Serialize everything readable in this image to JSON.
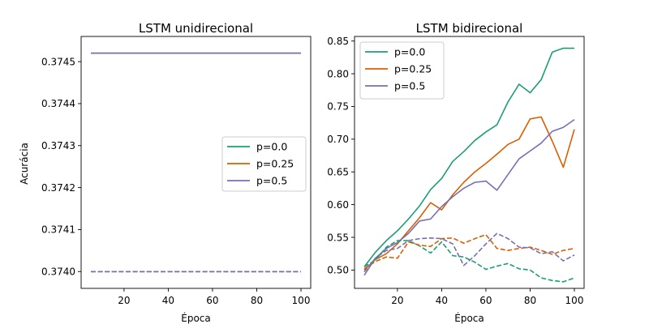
{
  "colors": {
    "p00": "#1b9e77",
    "p025": "#d95f02",
    "p05": "#7570b3"
  },
  "chart_data": [
    {
      "type": "line",
      "title": "LSTM unidirecional",
      "xlabel": "Época",
      "ylabel": "Acurácia",
      "xlim": [
        0.6,
        104.4
      ],
      "ylim": [
        0.37396,
        0.37456
      ],
      "xticks": [
        20,
        40,
        60,
        80,
        100
      ],
      "yticks": [
        0.374,
        0.3741,
        0.3742,
        0.3743,
        0.3744,
        0.3745
      ],
      "ytick_labels": [
        "0.3740",
        "0.3741",
        "0.3742",
        "0.3743",
        "0.3744",
        "0.3745"
      ],
      "legend": {
        "location": "center-right",
        "entries": [
          "p=0.0",
          "p=0.25",
          "p=0.5"
        ]
      },
      "series": [
        {
          "name": "p=0.0",
          "color": "#1b9e77",
          "style": "solid",
          "x": [
            5,
            100
          ],
          "y": [
            0.37452,
            0.37452
          ]
        },
        {
          "name": "p=0.25",
          "color": "#d95f02",
          "style": "solid",
          "x": [
            5,
            100
          ],
          "y": [
            0.37452,
            0.37452
          ]
        },
        {
          "name": "p=0.5",
          "color": "#7570b3",
          "style": "solid",
          "x": [
            5,
            100
          ],
          "y": [
            0.37452,
            0.37452
          ]
        },
        {
          "name": "p=0.0",
          "color": "#1b9e77",
          "style": "dashed",
          "x": [
            5,
            100
          ],
          "y": [
            0.374,
            0.374
          ]
        },
        {
          "name": "p=0.25",
          "color": "#d95f02",
          "style": "dashed",
          "x": [
            5,
            100
          ],
          "y": [
            0.374,
            0.374
          ]
        },
        {
          "name": "p=0.5",
          "color": "#7570b3",
          "style": "dashed",
          "x": [
            5,
            100
          ],
          "y": [
            0.374,
            0.374
          ]
        }
      ]
    },
    {
      "type": "line",
      "title": "LSTM bidirecional",
      "xlabel": "Época",
      "ylabel": "",
      "xlim": [
        0.6,
        104.4
      ],
      "ylim": [
        0.472,
        0.857
      ],
      "xticks": [
        20,
        40,
        60,
        80,
        100
      ],
      "yticks": [
        0.5,
        0.55,
        0.6,
        0.65,
        0.7,
        0.75,
        0.8,
        0.85
      ],
      "ytick_labels": [
        "0.50",
        "0.55",
        "0.60",
        "0.65",
        "0.70",
        "0.75",
        "0.80",
        "0.85"
      ],
      "legend": {
        "location": "top-left",
        "entries": [
          "p=0.0",
          "p=0.25",
          "p=0.5"
        ]
      },
      "series": [
        {
          "name": "p=0.0",
          "color": "#1b9e77",
          "style": "solid",
          "x": [
            5,
            10,
            15,
            20,
            25,
            30,
            35,
            40,
            45,
            50,
            55,
            60,
            65,
            70,
            75,
            80,
            85,
            90,
            95,
            100
          ],
          "y": [
            0.505,
            0.527,
            0.545,
            0.56,
            0.578,
            0.598,
            0.623,
            0.64,
            0.666,
            0.681,
            0.698,
            0.711,
            0.722,
            0.757,
            0.784,
            0.771,
            0.791,
            0.833,
            0.839,
            0.839
          ]
        },
        {
          "name": "p=0.25",
          "color": "#d95f02",
          "style": "solid",
          "x": [
            5,
            10,
            15,
            20,
            25,
            30,
            35,
            40,
            45,
            50,
            55,
            60,
            65,
            70,
            75,
            80,
            85,
            90,
            95,
            100
          ],
          "y": [
            0.5,
            0.516,
            0.525,
            0.54,
            0.56,
            0.58,
            0.603,
            0.592,
            0.615,
            0.634,
            0.65,
            0.663,
            0.677,
            0.692,
            0.7,
            0.731,
            0.734,
            0.697,
            0.657,
            0.715
          ]
        },
        {
          "name": "p=0.5",
          "color": "#7570b3",
          "style": "solid",
          "x": [
            5,
            10,
            15,
            20,
            25,
            30,
            35,
            40,
            45,
            50,
            55,
            60,
            65,
            70,
            75,
            80,
            85,
            90,
            95,
            100
          ],
          "y": [
            0.492,
            0.518,
            0.533,
            0.542,
            0.556,
            0.575,
            0.578,
            0.597,
            0.612,
            0.625,
            0.634,
            0.636,
            0.622,
            0.646,
            0.67,
            0.682,
            0.694,
            0.712,
            0.718,
            0.73
          ]
        },
        {
          "name": "p=0.0",
          "color": "#1b9e77",
          "style": "dashed",
          "x": [
            5,
            10,
            15,
            20,
            25,
            30,
            35,
            40,
            45,
            50,
            55,
            60,
            65,
            70,
            75,
            80,
            85,
            90,
            95,
            100
          ],
          "y": [
            0.505,
            0.515,
            0.535,
            0.545,
            0.545,
            0.537,
            0.526,
            0.543,
            0.522,
            0.52,
            0.512,
            0.501,
            0.506,
            0.51,
            0.502,
            0.5,
            0.488,
            0.484,
            0.482,
            0.488
          ]
        },
        {
          "name": "p=0.25",
          "color": "#d95f02",
          "style": "dashed",
          "x": [
            5,
            10,
            15,
            20,
            25,
            30,
            35,
            40,
            45,
            50,
            55,
            60,
            65,
            70,
            75,
            80,
            85,
            90,
            95,
            100
          ],
          "y": [
            0.502,
            0.513,
            0.52,
            0.518,
            0.543,
            0.538,
            0.536,
            0.548,
            0.549,
            0.541,
            0.548,
            0.554,
            0.533,
            0.53,
            0.533,
            0.535,
            0.53,
            0.524,
            0.53,
            0.533
          ]
        },
        {
          "name": "p=0.5",
          "color": "#7570b3",
          "style": "dashed",
          "x": [
            5,
            10,
            15,
            20,
            25,
            30,
            35,
            40,
            45,
            50,
            55,
            60,
            65,
            70,
            75,
            80,
            85,
            90,
            95,
            100
          ],
          "y": [
            0.497,
            0.518,
            0.53,
            0.533,
            0.545,
            0.548,
            0.549,
            0.548,
            0.54,
            0.507,
            0.522,
            0.54,
            0.556,
            0.548,
            0.535,
            0.534,
            0.525,
            0.528,
            0.514,
            0.523
          ]
        }
      ]
    }
  ]
}
